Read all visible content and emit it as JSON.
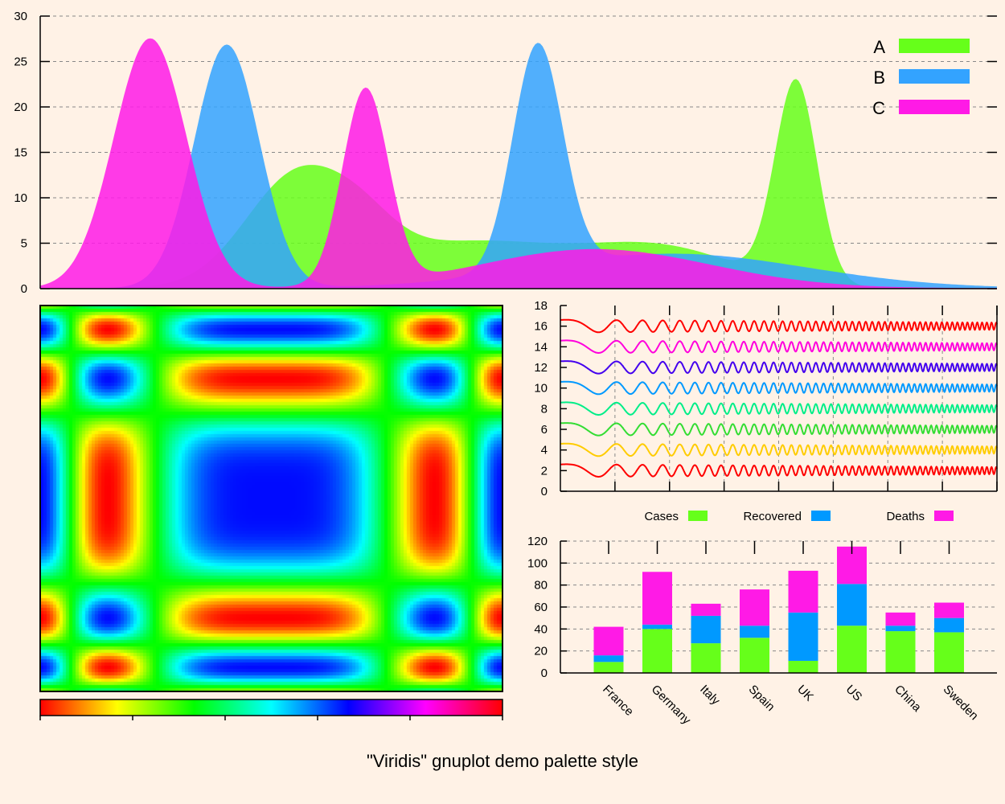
{
  "title": "\"Viridis\" gnuplot demo palette style",
  "chart_data": [
    {
      "id": "density",
      "type": "area",
      "title": "",
      "xlabel": "",
      "ylabel": "",
      "ylim": [
        0,
        30
      ],
      "yticks": [
        0,
        5,
        10,
        15,
        20,
        25,
        30
      ],
      "xlim": [
        0,
        100
      ],
      "grid": true,
      "legend_position": "top-right",
      "series": [
        {
          "name": "A",
          "color": "#66ff1a",
          "components": [
            {
              "mu": 27,
              "sigma": 5.5,
              "amp": 12
            },
            {
              "mu": 34,
              "sigma": 3.5,
              "amp": 2.5
            },
            {
              "mu": 45,
              "sigma": 10,
              "amp": 5
            },
            {
              "mu": 65,
              "sigma": 8,
              "amp": 4.2
            },
            {
              "mu": 79,
              "sigma": 2.2,
              "amp": 22.1
            }
          ]
        },
        {
          "name": "B",
          "color": "#33a3ff",
          "components": [
            {
              "mu": 19.5,
              "sigma": 3.4,
              "amp": 26.8
            },
            {
              "mu": 52,
              "sigma": 2.6,
              "amp": 24.7
            },
            {
              "mu": 66,
              "sigma": 14,
              "amp": 3.8
            }
          ]
        },
        {
          "name": "C",
          "color": "#ff1ae6",
          "components": [
            {
              "mu": 11.5,
              "sigma": 3.8,
              "amp": 27.5
            },
            {
              "mu": 34,
              "sigma": 2.4,
              "amp": 21.5
            },
            {
              "mu": 58,
              "sigma": 12,
              "amp": 4.3
            }
          ]
        }
      ]
    },
    {
      "id": "heatmap",
      "type": "heatmap",
      "title": "",
      "xlabel": "",
      "ylabel": "",
      "colorbar_ticks": 6,
      "palette": [
        "#ff0000",
        "#ffff00",
        "#00ff00",
        "#00ffff",
        "#0000ff",
        "#ff00ff",
        "#ff0000"
      ]
    },
    {
      "id": "waves",
      "type": "line",
      "title": "",
      "xlabel": "",
      "ylabel": "",
      "ylim": [
        0,
        18
      ],
      "yticks": [
        0,
        2,
        4,
        6,
        8,
        10,
        12,
        14,
        16,
        18
      ],
      "grid": true,
      "series": [
        {
          "offset": 2,
          "color": "#ff0000"
        },
        {
          "offset": 4,
          "color": "#ffcc00"
        },
        {
          "offset": 6,
          "color": "#33dd33"
        },
        {
          "offset": 8,
          "color": "#00ee88"
        },
        {
          "offset": 10,
          "color": "#0099ff"
        },
        {
          "offset": 12,
          "color": "#4400ee"
        },
        {
          "offset": 14,
          "color": "#ff00dd"
        },
        {
          "offset": 16,
          "color": "#ff0000"
        }
      ]
    },
    {
      "id": "stacked",
      "type": "bar",
      "title": "",
      "xlabel": "",
      "ylabel": "",
      "ylim": [
        0,
        120
      ],
      "yticks": [
        0,
        20,
        40,
        60,
        80,
        100,
        120
      ],
      "grid": true,
      "legend_position": "top",
      "categories": [
        "France",
        "Germany",
        "Italy",
        "Spain",
        "UK",
        "US",
        "China",
        "Sweden"
      ],
      "series": [
        {
          "name": "Cases",
          "color": "#66ff1a",
          "values": [
            10,
            40,
            27,
            32,
            11,
            43,
            38,
            37
          ]
        },
        {
          "name": "Recovered",
          "color": "#0099ff",
          "values": [
            6,
            4,
            25,
            11,
            44,
            38,
            5,
            13
          ]
        },
        {
          "name": "Deaths",
          "color": "#ff1ae6",
          "values": [
            26,
            48,
            11,
            33,
            38,
            34,
            12,
            14
          ]
        }
      ]
    }
  ]
}
